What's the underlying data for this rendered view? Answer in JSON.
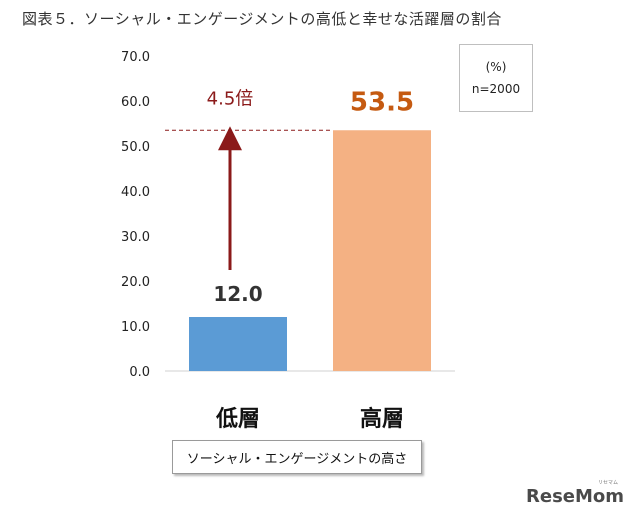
{
  "title": "図表５．ソーシャル・エンゲージメントの高低と幸せな活躍層の割合",
  "legend": {
    "unit": "(%)",
    "sample": "n=2000"
  },
  "xaxis_box_label": "ソーシャル・エンゲージメントの高さ",
  "annotation": "4.5倍",
  "logo": {
    "text": "ReseMom",
    "small": "リセマム"
  },
  "colors": {
    "low_bar": "#5b9bd5",
    "high_bar": "#f4b183",
    "arrow": "#8b1a1a",
    "high_label": "#c55a11",
    "low_label": "#333333"
  },
  "chart_data": {
    "type": "bar",
    "categories": [
      "低層",
      "高層"
    ],
    "values": [
      12.0,
      53.5
    ],
    "value_labels": [
      "12.0",
      "53.5"
    ],
    "ylim": [
      0,
      70
    ],
    "yticks": [
      "0.0",
      "10.0",
      "20.0",
      "30.0",
      "40.0",
      "50.0",
      "60.0",
      "70.0"
    ],
    "grid": false,
    "legend_position": "top-right"
  }
}
